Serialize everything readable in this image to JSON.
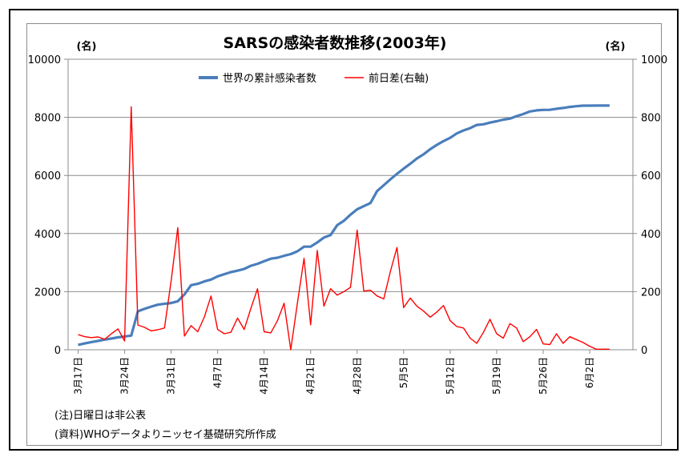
{
  "chart_data": {
    "type": "line",
    "title": "SARSの感染者数推移(2003年)",
    "y_left_unit": "(名)",
    "y_right_unit": "(名)",
    "ylim_left": [
      0,
      10000
    ],
    "ylim_right": [
      0,
      1000
    ],
    "y_left_ticks": [
      "0",
      "2000",
      "4000",
      "6000",
      "8000",
      "10000"
    ],
    "y_right_ticks": [
      "0",
      "200",
      "400",
      "600",
      "800",
      "1000"
    ],
    "x_tick_labels": [
      "3月17日",
      "3月24日",
      "3月31日",
      "4月7日",
      "4月14日",
      "4月21日",
      "4月28日",
      "5月5日",
      "5月12日",
      "5月19日",
      "5月26日",
      "6月2日"
    ],
    "x_start": "3月17日",
    "x_days": 83,
    "grid": "horizontal",
    "legend_position": "top-center",
    "series": [
      {
        "name": "世界の累計感染者数",
        "axis": "left",
        "color": "#4a7ebb",
        "values": [
          167,
          219,
          264,
          306,
          350,
          386,
          428,
          456,
          487,
          1323,
          1408,
          1485,
          1550,
          1580,
          1610,
          1670,
          1904,
          2223,
          2270,
          2353,
          2416,
          2525,
          2601,
          2671,
          2722,
          2781,
          2890,
          2960,
          3047,
          3136,
          3169,
          3235,
          3293,
          3389,
          3547,
          3547,
          3694,
          3861,
          3947,
          4288,
          4439,
          4649,
          4836,
          4942,
          5050,
          5462,
          5663,
          5865,
          6054,
          6234,
          6403,
          6583,
          6727,
          6903,
          7053,
          7183,
          7296,
          7447,
          7548,
          7628,
          7739,
          7761,
          7818,
          7864,
          7919,
          7956,
          8040,
          8114,
          8202,
          8240,
          8256,
          8260,
          8295,
          8323,
          8358,
          8384,
          8402,
          8402,
          8404,
          8404,
          8404
        ]
      },
      {
        "name": "前日差(右軸)",
        "axis": "right",
        "color": "#ff0000",
        "values": [
          52,
          45,
          42,
          44,
          36,
          55,
          72,
          30,
          836,
          85,
          77,
          65,
          69,
          75,
          237,
          420,
          47,
          83,
          62,
          113,
          185,
          70,
          55,
          60,
          109,
          70,
          142,
          210,
          62,
          58,
          100,
          160,
          0,
          160,
          315,
          86,
          342,
          150,
          210,
          188,
          200,
          215,
          412,
          202,
          205,
          185,
          175,
          270,
          352,
          145,
          178,
          150,
          133,
          112,
          130,
          152,
          100,
          80,
          75,
          40,
          22,
          60,
          105,
          55,
          40,
          90,
          75,
          28,
          45,
          70,
          20,
          18,
          55,
          22,
          45,
          35,
          25,
          12,
          2,
          2,
          2
        ]
      }
    ]
  },
  "notes": {
    "line1": "(注)日曜日は非公表",
    "line2": "(資料)WHOデータよりニッセイ基礎研究所作成"
  }
}
